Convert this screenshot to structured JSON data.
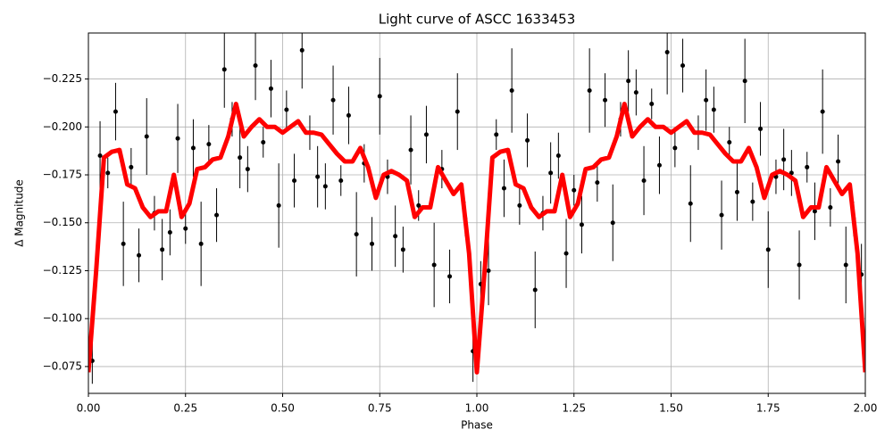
{
  "chart_data": {
    "type": "errorbar",
    "title": "Light curve of ASCC 1633453",
    "xlabel": "Phase",
    "ylabel": "Δ Magnitude",
    "xlim": [
      0,
      2
    ],
    "ylim": [
      -0.061,
      -0.249
    ],
    "xticks": [
      {
        "value": 0,
        "label": "0.00"
      },
      {
        "value": 0.25,
        "label": "0.25"
      },
      {
        "value": 0.5,
        "label": "0.50"
      },
      {
        "value": 0.75,
        "label": "0.75"
      },
      {
        "value": 1,
        "label": "1.00"
      },
      {
        "value": 1.25,
        "label": "1.25"
      },
      {
        "value": 1.5,
        "label": "1.50"
      },
      {
        "value": 1.75,
        "label": "1.75"
      },
      {
        "value": 2,
        "label": "2.00"
      }
    ],
    "yticks": [
      {
        "value": -0.075,
        "label": "−0.075"
      },
      {
        "value": -0.1,
        "label": "−0.100"
      },
      {
        "value": -0.125,
        "label": "−0.125"
      },
      {
        "value": -0.15,
        "label": "−0.150"
      },
      {
        "value": -0.175,
        "label": "−0.175"
      },
      {
        "value": -0.2,
        "label": "−0.200"
      },
      {
        "value": -0.225,
        "label": "−0.225"
      }
    ],
    "grid": true,
    "points": {
      "color": "#000000",
      "x": [
        0.01,
        0.03,
        0.05,
        0.07,
        0.09,
        0.11,
        0.13,
        0.15,
        0.17,
        0.19,
        0.21,
        0.23,
        0.25,
        0.27,
        0.29,
        0.31,
        0.33,
        0.35,
        0.37,
        0.39,
        0.41,
        0.43,
        0.45,
        0.47,
        0.49,
        0.51,
        0.53,
        0.55,
        0.57,
        0.59,
        0.61,
        0.63,
        0.65,
        0.67,
        0.69,
        0.71,
        0.73,
        0.75,
        0.77,
        0.79,
        0.81,
        0.83,
        0.85,
        0.87,
        0.89,
        0.91,
        0.93,
        0.95,
        0.97,
        0.99,
        1.01,
        1.03,
        1.05,
        1.07,
        1.09,
        1.11,
        1.13,
        1.15,
        1.17,
        1.19,
        1.21,
        1.23,
        1.25,
        1.27,
        1.29,
        1.31,
        1.33,
        1.35,
        1.37,
        1.39,
        1.41,
        1.43,
        1.45,
        1.47,
        1.49,
        1.51,
        1.53,
        1.55,
        1.57,
        1.59,
        1.61,
        1.63,
        1.65,
        1.67,
        1.69,
        1.71,
        1.73,
        1.75,
        1.77,
        1.79,
        1.81,
        1.83,
        1.85,
        1.87,
        1.89,
        1.91,
        1.93,
        1.95,
        1.97,
        1.99
      ],
      "values": [
        -0.078,
        -0.185,
        -0.176,
        -0.208,
        -0.139,
        -0.179,
        -0.133,
        -0.195,
        -0.155,
        -0.136,
        -0.145,
        -0.194,
        -0.147,
        -0.189,
        -0.139,
        -0.191,
        -0.154,
        -0.23,
        -0.204,
        -0.184,
        -0.178,
        -0.232,
        -0.192,
        -0.22,
        -0.159,
        -0.209,
        -0.172,
        -0.24,
        -0.197,
        -0.174,
        -0.169,
        -0.214,
        -0.172,
        -0.206,
        -0.144,
        -0.181,
        -0.139,
        -0.216,
        -0.174,
        -0.143,
        -0.136,
        -0.188,
        -0.159,
        -0.196,
        -0.128,
        -0.178,
        -0.122,
        -0.208,
        -0.152,
        -0.083,
        -0.118,
        -0.125,
        -0.196,
        -0.168,
        -0.219,
        -0.159,
        -0.193,
        -0.115,
        -0.155,
        -0.176,
        -0.185,
        -0.134,
        -0.167,
        -0.149,
        -0.219,
        -0.171,
        -0.214,
        -0.15,
        -0.204,
        -0.224,
        -0.218,
        -0.172,
        -0.212,
        -0.18,
        -0.239,
        -0.189,
        -0.232,
        -0.16,
        -0.197,
        -0.214,
        -0.209,
        -0.154,
        -0.192,
        -0.166,
        -0.224,
        -0.161,
        -0.199,
        -0.136,
        -0.174,
        -0.183,
        -0.176,
        -0.128,
        -0.179,
        -0.156,
        -0.208,
        -0.158,
        -0.182,
        -0.128,
        -0.152,
        -0.123
      ],
      "errors": [
        0.012,
        0.018,
        0.008,
        0.015,
        0.022,
        0.01,
        0.014,
        0.02,
        0.009,
        0.016,
        0.012,
        0.018,
        0.008,
        0.015,
        0.022,
        0.01,
        0.014,
        0.02,
        0.009,
        0.016,
        0.012,
        0.018,
        0.008,
        0.015,
        0.022,
        0.01,
        0.014,
        0.02,
        0.009,
        0.016,
        0.012,
        0.018,
        0.008,
        0.015,
        0.022,
        0.01,
        0.014,
        0.02,
        0.009,
        0.016,
        0.012,
        0.018,
        0.008,
        0.015,
        0.022,
        0.01,
        0.014,
        0.02,
        0.009,
        0.016,
        0.012,
        0.018,
        0.008,
        0.015,
        0.022,
        0.01,
        0.014,
        0.02,
        0.009,
        0.016,
        0.012,
        0.018,
        0.008,
        0.015,
        0.022,
        0.01,
        0.014,
        0.02,
        0.009,
        0.016,
        0.012,
        0.018,
        0.008,
        0.015,
        0.022,
        0.01,
        0.014,
        0.02,
        0.009,
        0.016,
        0.012,
        0.018,
        0.008,
        0.015,
        0.022,
        0.01,
        0.014,
        0.02,
        0.009,
        0.016,
        0.012,
        0.018,
        0.008,
        0.015,
        0.022,
        0.01,
        0.014,
        0.02,
        0.009,
        0.016
      ]
    },
    "model": {
      "color": "#ff0000",
      "x": [
        0,
        0.02,
        0.04,
        0.06,
        0.08,
        0.1,
        0.12,
        0.14,
        0.16,
        0.18,
        0.2,
        0.22,
        0.24,
        0.26,
        0.28,
        0.3,
        0.32,
        0.34,
        0.36,
        0.38,
        0.4,
        0.42,
        0.44,
        0.46,
        0.48,
        0.5,
        0.52,
        0.54,
        0.56,
        0.58,
        0.6,
        0.62,
        0.64,
        0.66,
        0.68,
        0.7,
        0.72,
        0.74,
        0.76,
        0.78,
        0.8,
        0.82,
        0.84,
        0.86,
        0.88,
        0.9,
        0.92,
        0.94,
        0.96,
        0.98,
        1,
        1.02,
        1.04,
        1.06,
        1.08,
        1.1,
        1.12,
        1.14,
        1.16,
        1.18,
        1.2,
        1.22,
        1.24,
        1.26,
        1.28,
        1.3,
        1.32,
        1.34,
        1.36,
        1.38,
        1.4,
        1.42,
        1.44,
        1.46,
        1.48,
        1.5,
        1.52,
        1.54,
        1.56,
        1.58,
        1.6,
        1.62,
        1.64,
        1.66,
        1.68,
        1.7,
        1.72,
        1.74,
        1.76,
        1.78,
        1.8,
        1.82,
        1.84,
        1.86,
        1.88,
        1.9,
        1.92,
        1.94,
        1.96,
        1.98,
        2
      ],
      "values": [
        -0.072,
        -0.125,
        -0.184,
        -0.187,
        -0.188,
        -0.17,
        -0.168,
        -0.158,
        -0.153,
        -0.156,
        -0.156,
        -0.175,
        -0.153,
        -0.16,
        -0.178,
        -0.179,
        -0.183,
        -0.184,
        -0.195,
        -0.212,
        -0.195,
        -0.2,
        -0.204,
        -0.2,
        -0.2,
        -0.197,
        -0.2,
        -0.203,
        -0.197,
        -0.197,
        -0.196,
        -0.191,
        -0.186,
        -0.182,
        -0.182,
        -0.189,
        -0.179,
        -0.163,
        -0.175,
        -0.177,
        -0.175,
        -0.172,
        -0.153,
        -0.158,
        -0.158,
        -0.179,
        -0.172,
        -0.165,
        -0.17,
        -0.134,
        -0.072,
        -0.125,
        -0.184,
        -0.187,
        -0.188,
        -0.17,
        -0.168,
        -0.158,
        -0.153,
        -0.156,
        -0.156,
        -0.175,
        -0.153,
        -0.16,
        -0.178,
        -0.179,
        -0.183,
        -0.184,
        -0.195,
        -0.212,
        -0.195,
        -0.2,
        -0.204,
        -0.2,
        -0.2,
        -0.197,
        -0.2,
        -0.203,
        -0.197,
        -0.197,
        -0.196,
        -0.191,
        -0.186,
        -0.182,
        -0.182,
        -0.189,
        -0.179,
        -0.163,
        -0.175,
        -0.177,
        -0.175,
        -0.172,
        -0.153,
        -0.158,
        -0.158,
        -0.179,
        -0.172,
        -0.165,
        -0.17,
        -0.134,
        -0.072
      ]
    }
  }
}
